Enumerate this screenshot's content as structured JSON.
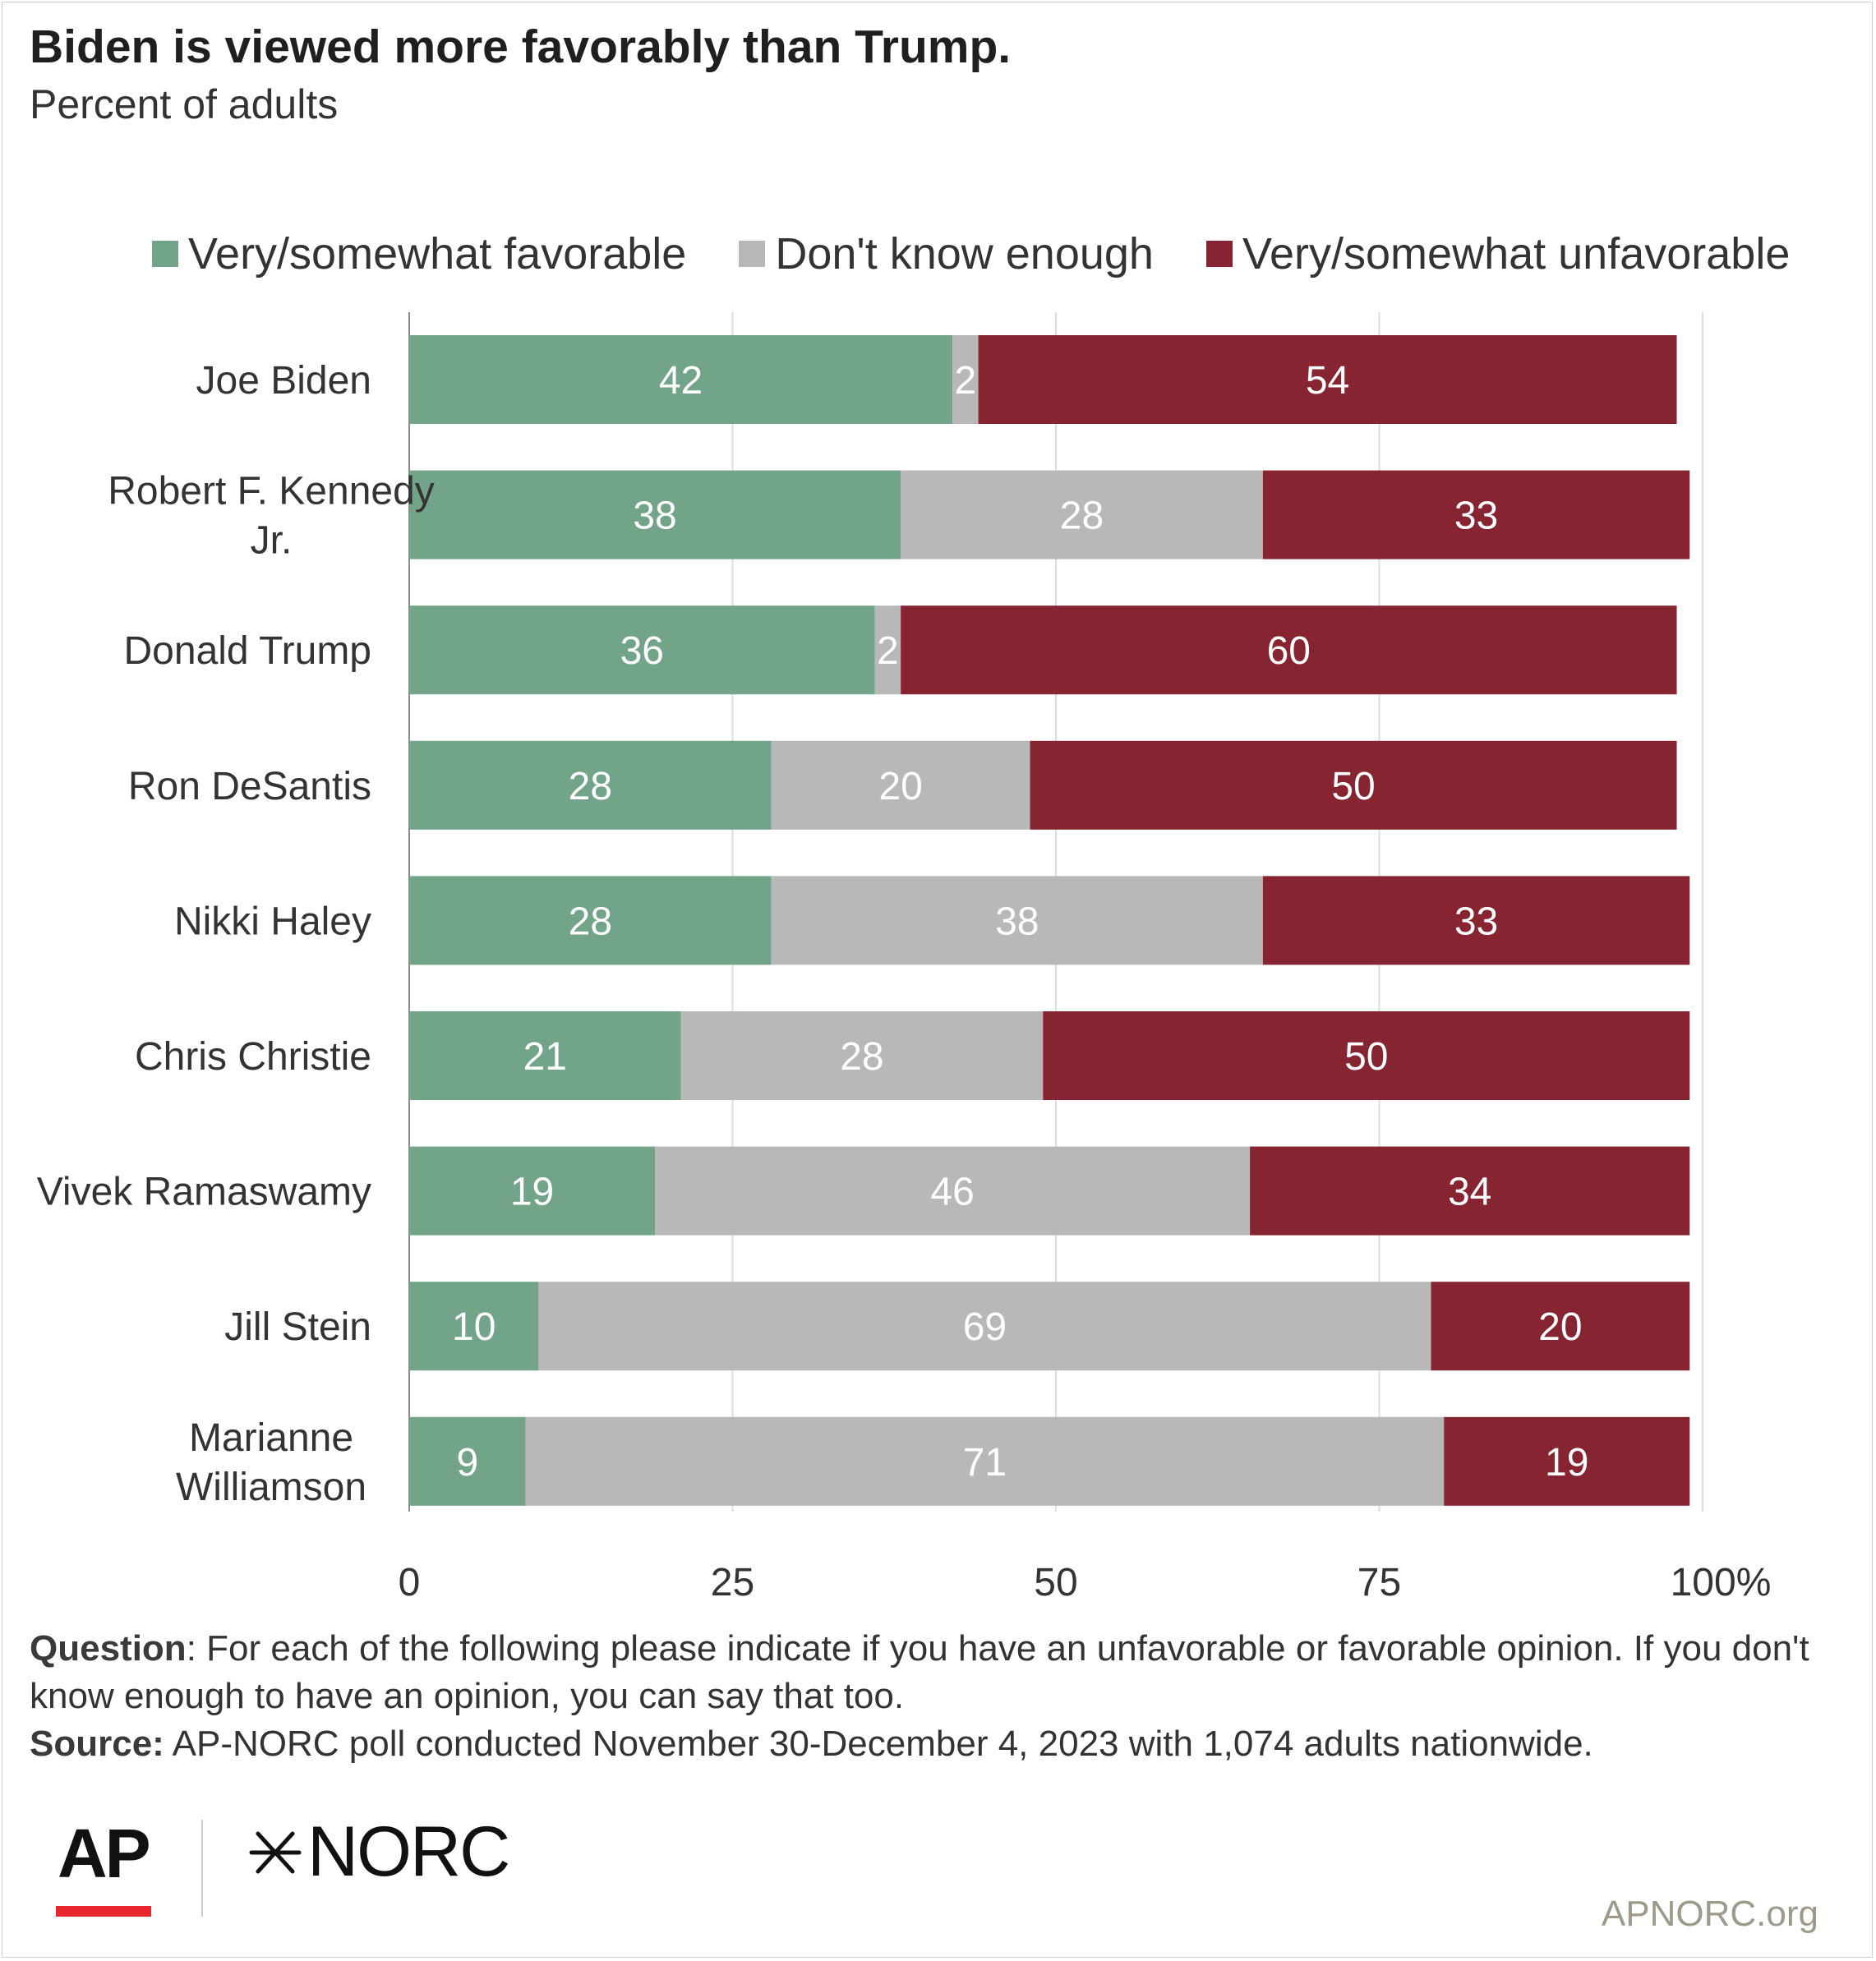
{
  "title": "Biden is viewed more favorably than Trump.",
  "subtitle": "Percent of adults",
  "legend": [
    {
      "label": "Very/somewhat favorable",
      "color": "#71a489"
    },
    {
      "label": "Don't know enough",
      "color": "#b8b8b8"
    },
    {
      "label": "Very/somewhat unfavorable",
      "color": "#862432"
    }
  ],
  "chart_data": {
    "type": "bar",
    "orientation": "horizontal",
    "stacked": true,
    "categories": [
      "Joe Biden",
      "Robert F. Kennedy Jr.",
      "Donald Trump",
      "Ron DeSantis",
      "Nikki Haley",
      "Chris Christie",
      "Vivek Ramaswamy",
      "Jill Stein",
      "Marianne Williamson"
    ],
    "series": [
      {
        "name": "Very/somewhat favorable",
        "values": [
          42,
          38,
          36,
          28,
          28,
          21,
          19,
          10,
          9
        ]
      },
      {
        "name": "Don't know enough",
        "values": [
          2,
          28,
          2,
          20,
          38,
          28,
          46,
          69,
          71
        ]
      },
      {
        "name": "Very/somewhat unfavorable",
        "values": [
          54,
          33,
          60,
          50,
          33,
          50,
          34,
          20,
          19
        ]
      }
    ],
    "xlim": [
      0,
      100
    ],
    "xticks": [
      0,
      25,
      50,
      75,
      100
    ],
    "xtick_labels": [
      "0",
      "25",
      "50",
      "75",
      "100%"
    ],
    "grid": "vertical",
    "legend_position": "top",
    "value_label_color": "#ffffff"
  },
  "notes": {
    "question_label": "Question",
    "question_text": ": For each of the following please indicate if you have an unfavorable or favorable opinion. If you don't know enough to have an opinion, you can say that too.",
    "source_label": "Source:",
    "source_text": " AP-NORC poll conducted November 30-December 4, 2023 with 1,074 adults nationwide."
  },
  "logos": {
    "ap": "AP",
    "norc": "NORC",
    "ap_accent": "#e8262d",
    "norc_icon": "star-icon"
  },
  "footer_url": "APNORC.org"
}
